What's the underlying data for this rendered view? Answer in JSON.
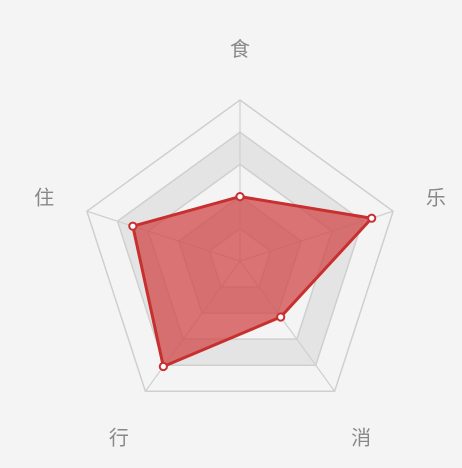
{
  "chart_data": {
    "type": "radar",
    "indicators": [
      "食",
      "乐",
      "消",
      "行",
      "住"
    ],
    "max": 100,
    "rings": 5,
    "values": [
      40,
      86,
      43,
      81,
      70
    ],
    "colors": {
      "background": "#f4f4f4",
      "ring_odd": "#f4f4f4",
      "ring_even": "#e4e4e4",
      "ring_stroke": "#cfcfcf",
      "area_fill": "#d0484a",
      "area_stroke": "#c8302f",
      "point_fill": "#ffffff"
    }
  }
}
